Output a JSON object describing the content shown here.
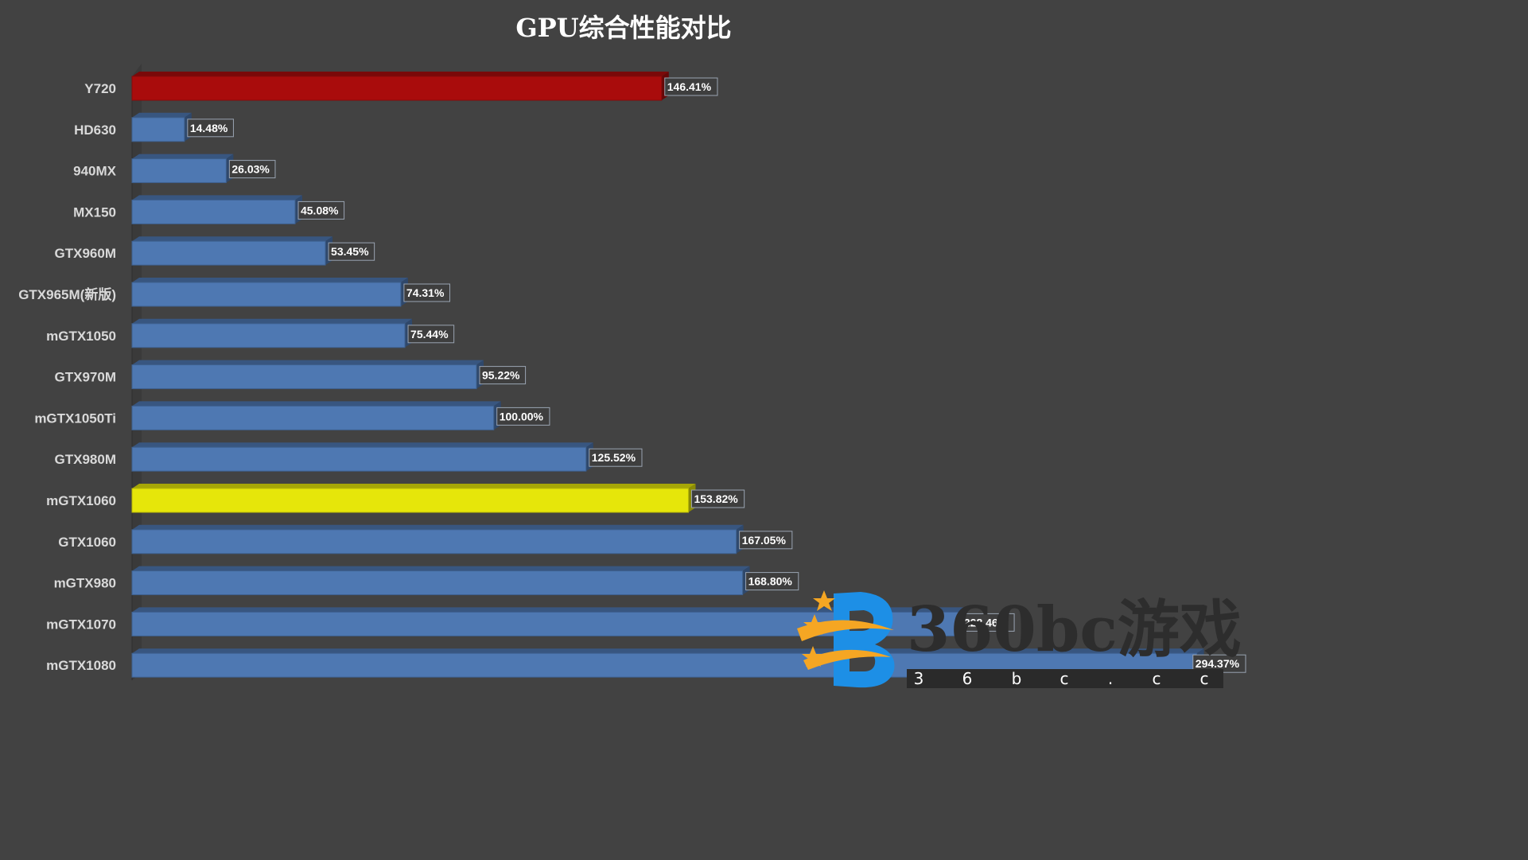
{
  "colors": {
    "background": "#424242",
    "default_bar": "#4e78b2",
    "highlight_red": "#a90c0c",
    "highlight_yellow": "#e6e60a"
  },
  "chart_data": {
    "type": "bar",
    "orientation": "horizontal",
    "title": "GPU综合性能对比",
    "categories": [
      "Y720",
      "HD630",
      "940MX",
      "MX150",
      "GTX960M",
      "GTX965M(新版)",
      "mGTX1050",
      "GTX970M",
      "mGTX1050Ti",
      "GTX980M",
      "mGTX1060",
      "GTX1060",
      "mGTX980",
      "mGTX1070",
      "mGTX1080"
    ],
    "values": [
      146.41,
      14.48,
      26.03,
      45.08,
      53.45,
      74.31,
      75.44,
      95.22,
      100.0,
      125.52,
      153.82,
      167.05,
      168.8,
      228.46,
      294.37
    ],
    "data_labels": [
      "146.41%",
      "14.48%",
      "26.03%",
      "45.08%",
      "53.45%",
      "74.31%",
      "75.44%",
      "95.22%",
      "100.00%",
      "125.52%",
      "153.82%",
      "167.05%",
      "168.80%",
      "228.46%",
      "294.37%"
    ],
    "bar_colors": [
      "#a90c0c",
      "#4e78b2",
      "#4e78b2",
      "#4e78b2",
      "#4e78b2",
      "#4e78b2",
      "#4e78b2",
      "#4e78b2",
      "#4e78b2",
      "#4e78b2",
      "#e6e60a",
      "#4e78b2",
      "#4e78b2",
      "#4e78b2",
      "#4e78b2"
    ],
    "xlim": [
      0,
      296
    ],
    "grid": false,
    "legend": "none"
  },
  "watermark": {
    "brand": "360bc游戏",
    "sub": [
      "3",
      "6",
      "b",
      "c",
      ".",
      "c",
      "c"
    ]
  }
}
